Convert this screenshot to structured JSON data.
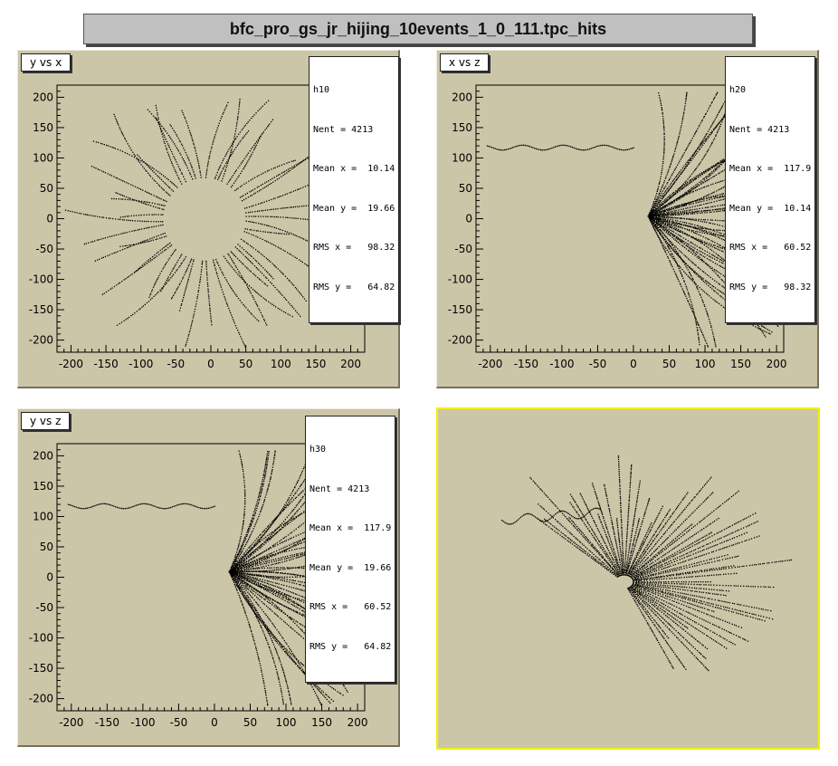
{
  "window": {
    "title": "bfc_pro_gs_jr_hijing_10events_1_0_111.tpc_hits"
  },
  "chart_data": [
    {
      "type": "scatter",
      "title": "y vs x",
      "xlabel": "",
      "ylabel": "",
      "xlim": [
        -220,
        220
      ],
      "ylim": [
        -220,
        220
      ],
      "xticks": [
        -200,
        -150,
        -100,
        -50,
        0,
        50,
        100,
        150,
        200
      ],
      "yticks": [
        200,
        150,
        100,
        50,
        0,
        -50,
        -100,
        -150,
        -200
      ],
      "grid": false,
      "stats": {
        "name": "h10",
        "entries": "4213",
        "mean_x": "10.14",
        "mean_y": "19.66",
        "rms_x": "98.32",
        "rms_y": "64.82"
      },
      "legend": "top-right"
    },
    {
      "type": "scatter",
      "title": "x vs z",
      "xlabel": "",
      "ylabel": "",
      "xlim": [
        -220,
        210
      ],
      "ylim": [
        -220,
        220
      ],
      "xticks": [
        -200,
        -150,
        -100,
        -50,
        0,
        50,
        100,
        150,
        200
      ],
      "yticks": [
        200,
        150,
        100,
        50,
        0,
        -50,
        -100,
        -150,
        -200
      ],
      "grid": false,
      "stats": {
        "name": "h20",
        "entries": "4213",
        "mean_x": "117.9",
        "mean_y": "10.14",
        "rms_x": "60.52",
        "rms_y": "98.32"
      },
      "legend": "top-right"
    },
    {
      "type": "scatter",
      "title": "y vs z",
      "xlabel": "",
      "ylabel": "",
      "xlim": [
        -220,
        210
      ],
      "ylim": [
        -220,
        220
      ],
      "xticks": [
        -200,
        -150,
        -100,
        -50,
        0,
        50,
        100,
        150,
        200
      ],
      "yticks": [
        200,
        150,
        100,
        50,
        0,
        -50,
        -100,
        -150,
        -200
      ],
      "grid": false,
      "stats": {
        "name": "h30",
        "entries": "4213",
        "mean_x": "117.9",
        "mean_y": "19.66",
        "rms_x": "60.52",
        "rms_y": "64.82"
      },
      "legend": "top-right"
    },
    {
      "type": "scatter",
      "title": "",
      "note": "3D view of hits (no axes)"
    }
  ],
  "labels": {
    "nent": "Nent = ",
    "mean_x": "Mean x = ",
    "mean_y": "Mean y = ",
    "rms_x": "RMS x = ",
    "rms_y": "RMS y = "
  },
  "colors": {
    "pad_bg": "#ccc6a8",
    "points": "#000000",
    "selected_border": "#f4f000"
  }
}
